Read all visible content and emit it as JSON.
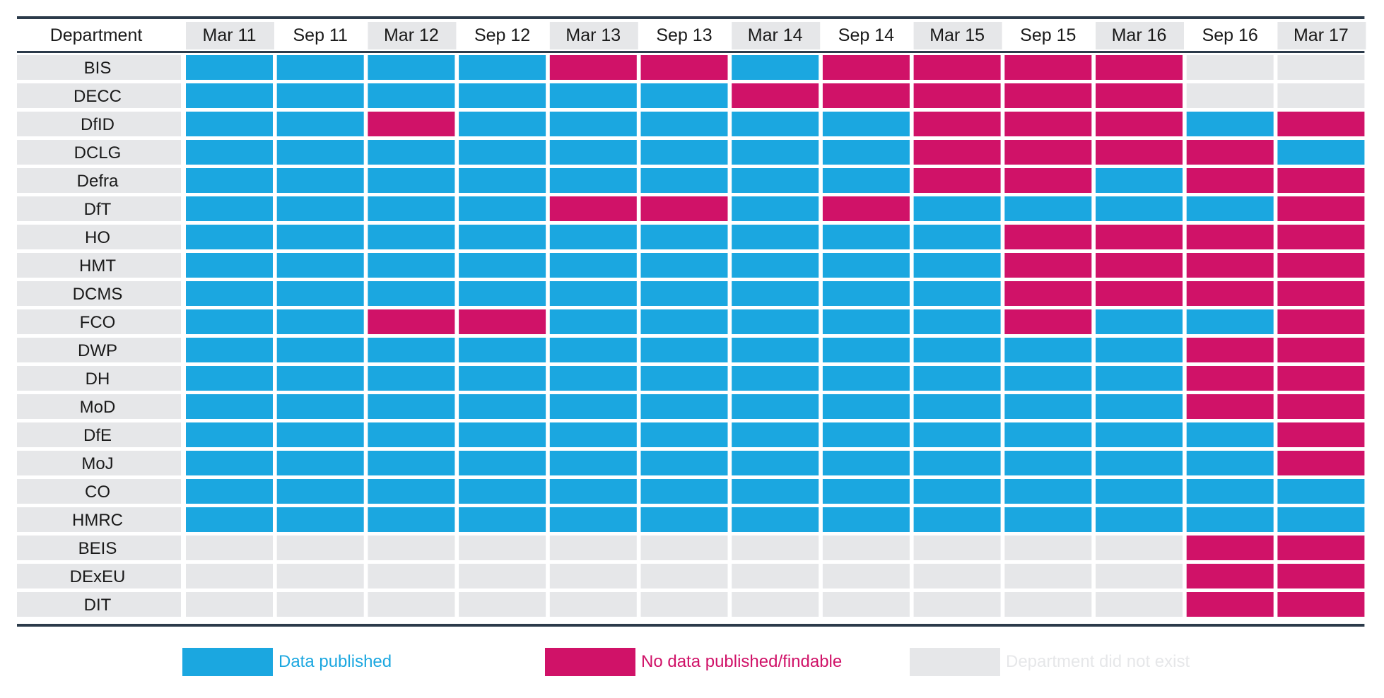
{
  "chart_data": {
    "type": "heatmap",
    "corner_label": "Department",
    "columns": [
      "Mar 11",
      "Sep 11",
      "Mar 12",
      "Sep 12",
      "Mar 13",
      "Sep 13",
      "Mar 14",
      "Sep 14",
      "Mar 15",
      "Sep 15",
      "Mar 16",
      "Sep 16",
      "Mar 17"
    ],
    "rows": [
      "BIS",
      "DECC",
      "DfID",
      "DCLG",
      "Defra",
      "DfT",
      "HO",
      "HMT",
      "DCMS",
      "FCO",
      "DWP",
      "DH",
      "MoD",
      "DfE",
      "MoJ",
      "CO",
      "HMRC",
      "BEIS",
      "DExEU",
      "DIT"
    ],
    "status_codes": {
      "P": "Data published",
      "N": "No data published/findable",
      "X": "Department did not exist"
    },
    "values": [
      [
        "P",
        "P",
        "P",
        "P",
        "N",
        "N",
        "P",
        "N",
        "N",
        "N",
        "N",
        "X",
        "X"
      ],
      [
        "P",
        "P",
        "P",
        "P",
        "P",
        "P",
        "N",
        "N",
        "N",
        "N",
        "N",
        "X",
        "X"
      ],
      [
        "P",
        "P",
        "N",
        "P",
        "P",
        "P",
        "P",
        "P",
        "N",
        "N",
        "N",
        "P",
        "N"
      ],
      [
        "P",
        "P",
        "P",
        "P",
        "P",
        "P",
        "P",
        "P",
        "N",
        "N",
        "N",
        "N",
        "P"
      ],
      [
        "P",
        "P",
        "P",
        "P",
        "P",
        "P",
        "P",
        "P",
        "N",
        "N",
        "P",
        "N",
        "N"
      ],
      [
        "P",
        "P",
        "P",
        "P",
        "N",
        "N",
        "P",
        "N",
        "P",
        "P",
        "P",
        "P",
        "N"
      ],
      [
        "P",
        "P",
        "P",
        "P",
        "P",
        "P",
        "P",
        "P",
        "P",
        "N",
        "N",
        "N",
        "N"
      ],
      [
        "P",
        "P",
        "P",
        "P",
        "P",
        "P",
        "P",
        "P",
        "P",
        "N",
        "N",
        "N",
        "N"
      ],
      [
        "P",
        "P",
        "P",
        "P",
        "P",
        "P",
        "P",
        "P",
        "P",
        "N",
        "N",
        "N",
        "N"
      ],
      [
        "P",
        "P",
        "N",
        "N",
        "P",
        "P",
        "P",
        "P",
        "P",
        "N",
        "P",
        "P",
        "N"
      ],
      [
        "P",
        "P",
        "P",
        "P",
        "P",
        "P",
        "P",
        "P",
        "P",
        "P",
        "P",
        "N",
        "N"
      ],
      [
        "P",
        "P",
        "P",
        "P",
        "P",
        "P",
        "P",
        "P",
        "P",
        "P",
        "P",
        "N",
        "N"
      ],
      [
        "P",
        "P",
        "P",
        "P",
        "P",
        "P",
        "P",
        "P",
        "P",
        "P",
        "P",
        "N",
        "N"
      ],
      [
        "P",
        "P",
        "P",
        "P",
        "P",
        "P",
        "P",
        "P",
        "P",
        "P",
        "P",
        "P",
        "N"
      ],
      [
        "P",
        "P",
        "P",
        "P",
        "P",
        "P",
        "P",
        "P",
        "P",
        "P",
        "P",
        "P",
        "N"
      ],
      [
        "P",
        "P",
        "P",
        "P",
        "P",
        "P",
        "P",
        "P",
        "P",
        "P",
        "P",
        "P",
        "P"
      ],
      [
        "P",
        "P",
        "P",
        "P",
        "P",
        "P",
        "P",
        "P",
        "P",
        "P",
        "P",
        "P",
        "P"
      ],
      [
        "X",
        "X",
        "X",
        "X",
        "X",
        "X",
        "X",
        "X",
        "X",
        "X",
        "X",
        "N",
        "N"
      ],
      [
        "X",
        "X",
        "X",
        "X",
        "X",
        "X",
        "X",
        "X",
        "X",
        "X",
        "X",
        "N",
        "N"
      ],
      [
        "X",
        "X",
        "X",
        "X",
        "X",
        "X",
        "X",
        "X",
        "X",
        "X",
        "X",
        "N",
        "N"
      ]
    ],
    "legend": [
      {
        "code": "P",
        "label": "Data published"
      },
      {
        "code": "N",
        "label": "No data published/findable"
      },
      {
        "code": "X",
        "label": "Department did not exist"
      }
    ],
    "legend_position": "bottom"
  },
  "colors": {
    "P": "#1ba7e0",
    "N": "#d01268",
    "X": "#e6e7e9",
    "header_alt": "#e6e7e9",
    "row_label_bg": "#e6e7e9",
    "rule": "#2b3a4a",
    "text": "#1a1a1a"
  }
}
